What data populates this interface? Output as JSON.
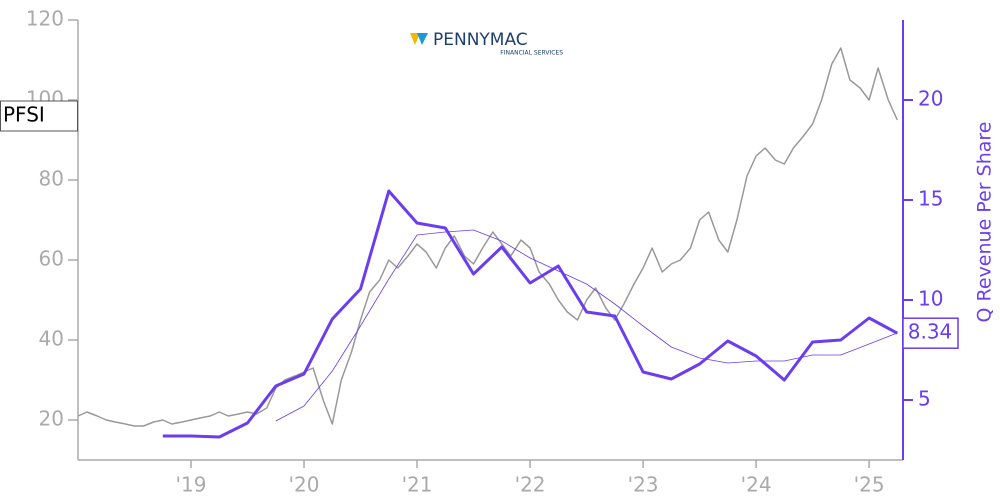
{
  "chart_data": {
    "type": "line",
    "logo": {
      "title": "PENNYMAC",
      "subtitle": "FINANCIAL SERVICES"
    },
    "y2label": "Q Revenue Per Share",
    "xlim": [
      2018,
      2025.3
    ],
    "xticks": [
      {
        "value": 2019,
        "label": "'19"
      },
      {
        "value": 2020,
        "label": "'20"
      },
      {
        "value": 2021,
        "label": "'21"
      },
      {
        "value": 2022,
        "label": "'22"
      },
      {
        "value": 2023,
        "label": "'23"
      },
      {
        "value": 2024,
        "label": "'24"
      },
      {
        "value": 2025,
        "label": "'25"
      }
    ],
    "ylim": [
      10,
      120
    ],
    "yticks": [
      20,
      40,
      60,
      80,
      100,
      120
    ],
    "y2lim": [
      2,
      24
    ],
    "y2ticks": [
      5,
      10,
      15,
      20
    ],
    "series": [
      {
        "name": "PFSI",
        "color": "#999999",
        "x": [
          2018.0,
          2018.08,
          2018.17,
          2018.25,
          2018.33,
          2018.42,
          2018.5,
          2018.58,
          2018.67,
          2018.75,
          2018.83,
          2018.92,
          2019.0,
          2019.08,
          2019.17,
          2019.25,
          2019.33,
          2019.42,
          2019.5,
          2019.58,
          2019.67,
          2019.75,
          2019.83,
          2019.92,
          2020.0,
          2020.08,
          2020.17,
          2020.25,
          2020.33,
          2020.42,
          2020.5,
          2020.58,
          2020.67,
          2020.75,
          2020.83,
          2020.92,
          2021.0,
          2021.08,
          2021.17,
          2021.25,
          2021.33,
          2021.42,
          2021.5,
          2021.58,
          2021.67,
          2021.75,
          2021.83,
          2021.92,
          2022.0,
          2022.08,
          2022.17,
          2022.25,
          2022.33,
          2022.42,
          2022.5,
          2022.58,
          2022.67,
          2022.75,
          2022.83,
          2022.92,
          2023.0,
          2023.08,
          2023.17,
          2023.25,
          2023.33,
          2023.42,
          2023.5,
          2023.58,
          2023.67,
          2023.75,
          2023.83,
          2023.92,
          2024.0,
          2024.08,
          2024.17,
          2024.25,
          2024.33,
          2024.42,
          2024.5,
          2024.58,
          2024.67,
          2024.75,
          2024.83,
          2024.92,
          2025.0,
          2025.08,
          2025.17,
          2025.25
        ],
        "values": [
          21,
          22,
          21,
          20,
          19.5,
          19,
          18.5,
          18.5,
          19.5,
          20,
          19,
          19.5,
          20,
          20.5,
          21,
          22,
          21,
          21.5,
          22,
          21.5,
          23,
          28,
          30,
          31,
          32,
          33,
          25,
          19,
          30,
          37,
          45,
          52,
          55,
          60,
          58,
          61,
          64,
          62,
          58,
          63,
          66,
          61,
          59,
          63,
          67,
          64,
          61,
          65,
          63,
          57,
          54,
          50,
          47,
          45,
          50,
          53,
          48,
          45,
          49,
          54,
          58,
          63,
          57,
          59,
          60,
          63,
          70,
          72,
          65,
          62,
          70,
          81,
          86,
          88,
          85,
          84,
          88,
          91,
          94,
          100,
          109,
          113,
          105,
          103,
          100,
          108,
          100,
          95
        ]
      },
      {
        "color": "#6a3df0",
        "axis": "y2",
        "x": [
          2018.75,
          2019.0,
          2019.25,
          2019.5,
          2019.75,
          2020.0,
          2020.25,
          2020.5,
          2020.75,
          2021.0,
          2021.25,
          2021.5,
          2021.75,
          2022.0,
          2022.25,
          2022.5,
          2022.75,
          2023.0,
          2023.25,
          2023.5,
          2023.75,
          2024.0,
          2024.25,
          2024.5,
          2024.75,
          2025.0,
          2025.25
        ],
        "values": [
          3.2,
          3.2,
          3.15,
          3.85,
          5.7,
          6.3,
          9.05,
          10.55,
          15.45,
          13.85,
          13.6,
          11.3,
          12.65,
          10.85,
          11.7,
          9.4,
          9.2,
          6.4,
          6.05,
          6.8,
          7.95,
          7.2,
          6.0,
          7.9,
          8.0,
          9.1,
          8.34
        ],
        "value_labels": [
          null,
          null,
          null,
          null,
          null,
          null,
          null,
          null,
          null,
          null,
          null,
          null,
          null,
          null,
          null,
          null,
          null,
          null,
          null,
          null,
          null,
          null,
          null,
          null,
          null,
          null,
          "8.34"
        ]
      },
      {
        "color": "#6a3df0",
        "axis": "y2",
        "x": [
          2019.75,
          2020.0,
          2020.25,
          2020.5,
          2020.75,
          2021.0,
          2021.25,
          2021.5,
          2021.75,
          2022.0,
          2022.25,
          2022.5,
          2022.75,
          2023.0,
          2023.25,
          2023.5,
          2023.75,
          2024.0,
          2024.25,
          2024.5,
          2024.75,
          2025.0,
          2025.25
        ],
        "values": [
          3.95,
          4.7,
          6.45,
          8.7,
          11.05,
          13.25,
          13.4,
          13.5,
          12.95,
          12.1,
          11.45,
          10.8,
          9.8,
          8.7,
          7.65,
          7.1,
          6.85,
          6.95,
          6.95,
          7.25,
          7.25,
          7.8,
          8.35
        ]
      }
    ]
  }
}
